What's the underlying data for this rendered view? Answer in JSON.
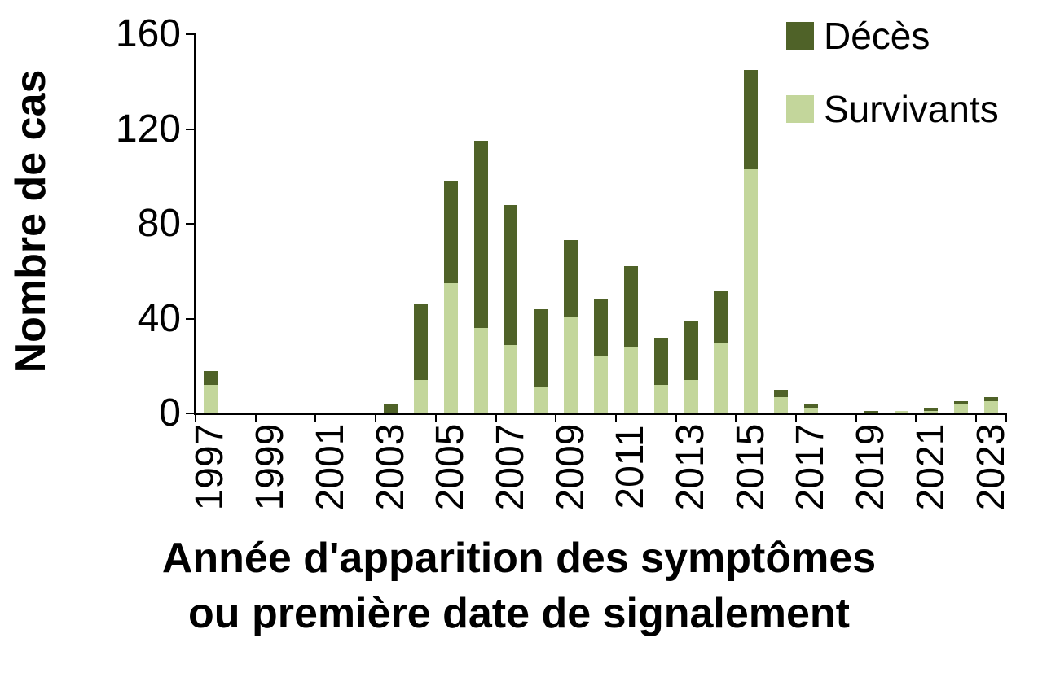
{
  "chart_data": {
    "type": "bar",
    "stacked": true,
    "ylabel": "Nombre de cas",
    "xlabel_line1": "Année d'apparition des symptômes",
    "xlabel_line2": "ou première date de signalement",
    "ylim": [
      0,
      160
    ],
    "yticks": [
      0,
      40,
      80,
      120,
      160
    ],
    "grid": false,
    "legend_position": "top-right",
    "categories": [
      1997,
      1998,
      1999,
      2000,
      2001,
      2002,
      2003,
      2004,
      2005,
      2006,
      2007,
      2008,
      2009,
      2010,
      2011,
      2012,
      2013,
      2014,
      2015,
      2016,
      2017,
      2018,
      2019,
      2020,
      2021,
      2022,
      2023
    ],
    "xtick_labels": [
      "1997",
      "1999",
      "2001",
      "2003",
      "2005",
      "2007",
      "2009",
      "2011",
      "2013",
      "2015",
      "2017",
      "2019",
      "2021",
      "2023"
    ],
    "series": [
      {
        "name": "Décès",
        "color": "#4F6228",
        "values": [
          6,
          0,
          0,
          0,
          0,
          0,
          4,
          32,
          43,
          79,
          59,
          33,
          32,
          24,
          34,
          20,
          25,
          22,
          42,
          3,
          2,
          0,
          1,
          0,
          1,
          1,
          2
        ]
      },
      {
        "name": "Survivants",
        "color": "#C3D69B",
        "values": [
          12,
          0,
          0,
          0,
          0,
          0,
          0,
          14,
          55,
          36,
          29,
          11,
          41,
          24,
          28,
          12,
          14,
          30,
          103,
          7,
          2,
          0,
          0,
          1,
          1,
          4,
          5
        ]
      }
    ]
  }
}
